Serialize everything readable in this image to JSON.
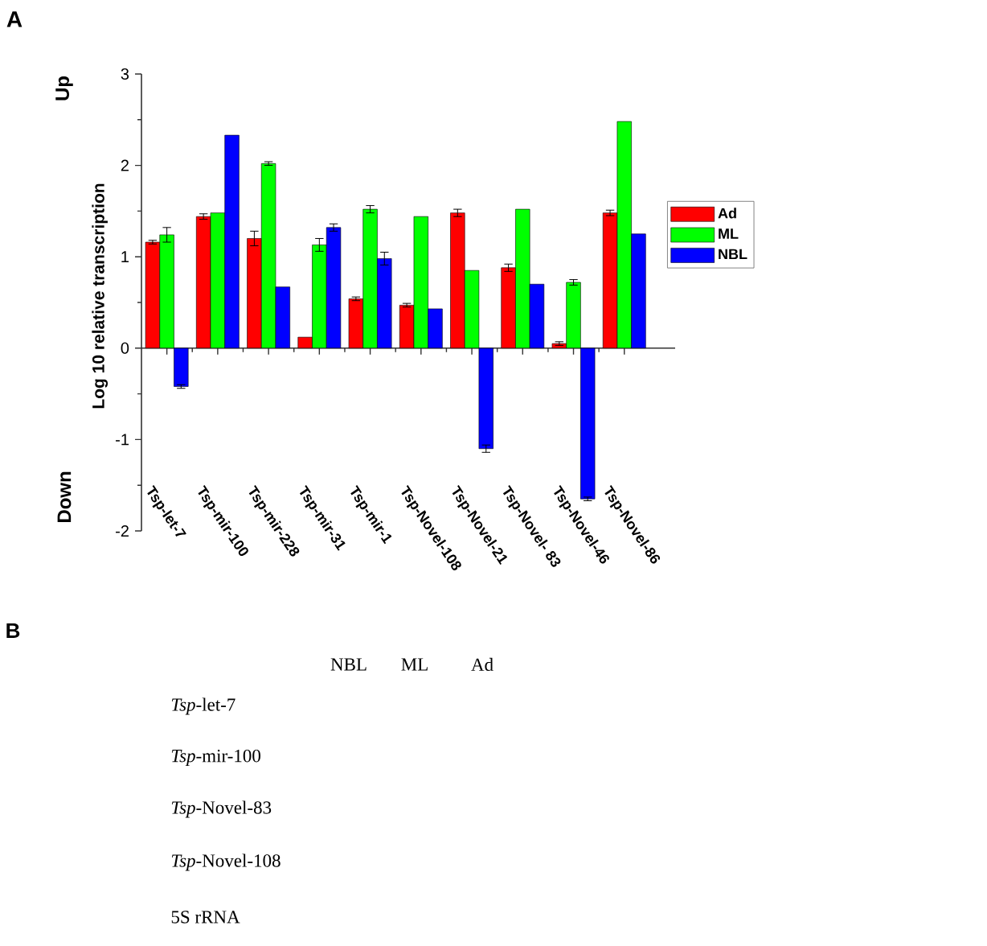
{
  "chart_data": [
    {
      "type": "bar",
      "annotations": [
        "A",
        "Up",
        "Down"
      ],
      "ylabel": "Log 10 relative transcription",
      "categories": [
        "Tsp-let-7",
        "Tsp-mir-100",
        "Tsp-mir-228",
        "Tsp-mir-31",
        "Tsp-mir-1",
        "Tsp-Novel-108",
        "Tsp-Novel-21",
        "Tsp-Novel- 83",
        "Tsp-Novel-46",
        "Tsp-Novel-86"
      ],
      "series": [
        {
          "name": "Ad",
          "color": "#ff0000",
          "values": [
            1.16,
            1.44,
            1.2,
            0.12,
            0.54,
            0.47,
            1.48,
            0.88,
            0.05,
            1.48
          ],
          "errors": [
            0.02,
            0.03,
            0.08,
            null,
            0.02,
            0.02,
            0.04,
            0.04,
            0.02,
            0.03
          ]
        },
        {
          "name": "ML",
          "color": "#00ff00",
          "values": [
            1.24,
            1.48,
            2.02,
            1.13,
            1.52,
            1.44,
            0.85,
            1.52,
            0.72,
            2.48
          ],
          "errors": [
            0.08,
            null,
            0.02,
            0.07,
            0.04,
            null,
            null,
            null,
            0.03,
            null
          ]
        },
        {
          "name": "NBL",
          "color": "#0000ff",
          "values": [
            -0.42,
            2.33,
            0.67,
            1.32,
            0.98,
            0.43,
            -1.1,
            0.7,
            -1.65,
            1.25
          ],
          "errors": [
            0.02,
            null,
            null,
            0.04,
            0.07,
            null,
            0.04,
            null,
            0.02,
            null
          ]
        }
      ],
      "ylim": [
        -2,
        3
      ],
      "yticks": [
        -2,
        -1,
        0,
        1,
        2,
        3
      ],
      "legend": "right"
    },
    {
      "type": "other",
      "annotations": [
        "B",
        "NBL",
        "ML",
        "Ad",
        "*Tsp*-let-7",
        "*Tsp*-mir-100",
        "*Tsp*-Novel-83",
        "*Tsp*-Novel-108",
        "5S rRNA"
      ]
    }
  ]
}
